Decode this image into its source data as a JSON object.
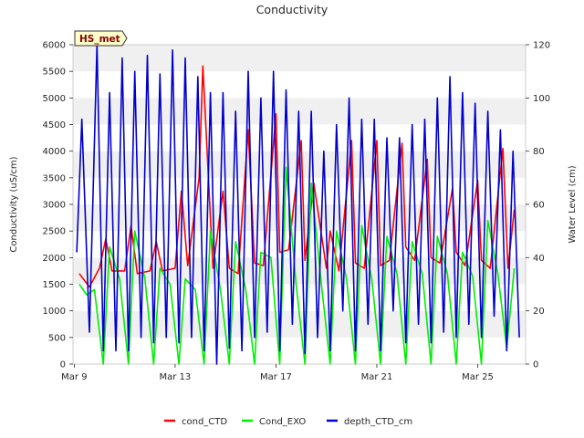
{
  "chart_data": {
    "type": "line",
    "title": "Conductivity",
    "badge": "HS_met",
    "ylabel": "Conductivity (uS/cm)",
    "y2label": "Water Level (cm)",
    "xlabel": "",
    "ylim": [
      0,
      6000
    ],
    "y2lim": [
      0,
      120
    ],
    "x_ticks": [
      {
        "label": "Mar 9",
        "day": 9
      },
      {
        "label": "Mar 13",
        "day": 13
      },
      {
        "label": "Mar 17",
        "day": 17
      },
      {
        "label": "Mar 21",
        "day": 21
      },
      {
        "label": "Mar 25",
        "day": 25
      }
    ],
    "y_ticks": [
      "0",
      "500",
      "1000",
      "1500",
      "2000",
      "2500",
      "3000",
      "3500",
      "4000",
      "4500",
      "5000",
      "5500",
      "6000"
    ],
    "y2_ticks": [
      "0",
      "20",
      "40",
      "60",
      "80",
      "100",
      "120"
    ],
    "x_range_days": [
      8.95,
      26.9
    ],
    "legend_position": "bottom-center",
    "grid": "horizontal bands",
    "series": [
      {
        "name": "cond_CTD",
        "axis": "left",
        "color": "#ff0000",
        "x_day": [
          9.2,
          9.6,
          10.0,
          10.25,
          10.5,
          11.0,
          11.25,
          11.5,
          12.0,
          12.25,
          12.5,
          13.0,
          13.25,
          13.5,
          13.95,
          14.1,
          14.5,
          14.9,
          15.15,
          15.5,
          15.9,
          16.15,
          16.5,
          17.0,
          17.15,
          17.5,
          18.0,
          18.15,
          18.5,
          19.0,
          19.15,
          19.5,
          20.0,
          20.15,
          20.5,
          21.0,
          21.15,
          21.5,
          22.0,
          22.15,
          22.5,
          23.0,
          23.15,
          23.5,
          24.0,
          24.15,
          24.5,
          25.0,
          25.15,
          25.5,
          26.0,
          26.2,
          26.45
        ],
        "values": [
          1700,
          1450,
          1800,
          2350,
          1750,
          1750,
          2600,
          1700,
          1750,
          2300,
          1750,
          1800,
          3250,
          1850,
          3500,
          5600,
          1800,
          3250,
          1800,
          1700,
          4400,
          1900,
          1850,
          4700,
          2100,
          2150,
          4200,
          1950,
          3400,
          1800,
          2500,
          1750,
          4200,
          1900,
          1800,
          4200,
          1850,
          1950,
          4150,
          2200,
          1950,
          3850,
          2000,
          1900,
          3300,
          2100,
          1850,
          3450,
          1950,
          1800,
          4050,
          1800,
          2900
        ]
      },
      {
        "name": "Cond_EXO",
        "axis": "left",
        "color": "#00ee00",
        "x_day": [
          9.2,
          9.5,
          9.8,
          10.15,
          10.4,
          10.8,
          11.15,
          11.4,
          11.8,
          12.15,
          12.4,
          12.8,
          13.15,
          13.4,
          13.8,
          14.15,
          14.4,
          14.8,
          15.15,
          15.4,
          15.8,
          16.15,
          16.4,
          16.8,
          17.15,
          17.4,
          17.8,
          18.15,
          18.4,
          18.8,
          19.15,
          19.4,
          19.8,
          20.15,
          20.4,
          20.8,
          21.15,
          21.4,
          21.8,
          22.15,
          22.4,
          22.8,
          23.15,
          23.4,
          23.8,
          24.15,
          24.4,
          24.8,
          25.15,
          25.4,
          25.8,
          26.15,
          26.45
        ],
        "values": [
          1500,
          1300,
          1400,
          0,
          2200,
          1600,
          0,
          2500,
          1600,
          0,
          1800,
          1500,
          0,
          1600,
          1400,
          0,
          2500,
          1400,
          0,
          2300,
          1400,
          0,
          2100,
          2000,
          0,
          3700,
          1500,
          0,
          3400,
          1500,
          0,
          2500,
          1600,
          0,
          2600,
          1600,
          0,
          2400,
          1700,
          0,
          2300,
          1700,
          0,
          2400,
          1700,
          0,
          2100,
          1650,
          0,
          2700,
          1700,
          300,
          1800
        ]
      },
      {
        "name": "depth_CTD_cm",
        "axis": "right",
        "color": "#0000cc",
        "x_day": [
          9.1,
          9.3,
          9.6,
          9.9,
          10.15,
          10.4,
          10.65,
          10.9,
          11.15,
          11.4,
          11.65,
          11.9,
          12.15,
          12.4,
          12.65,
          12.9,
          13.15,
          13.4,
          13.65,
          13.9,
          14.15,
          14.4,
          14.65,
          14.9,
          15.15,
          15.4,
          15.65,
          15.9,
          16.15,
          16.4,
          16.65,
          16.9,
          17.15,
          17.4,
          17.65,
          17.9,
          18.15,
          18.4,
          18.65,
          18.9,
          19.15,
          19.4,
          19.65,
          19.9,
          20.15,
          20.4,
          20.65,
          20.9,
          21.15,
          21.4,
          21.65,
          21.9,
          22.15,
          22.4,
          22.65,
          22.9,
          23.15,
          23.4,
          23.65,
          23.9,
          24.15,
          24.4,
          24.65,
          24.9,
          25.15,
          25.4,
          25.65,
          25.9,
          26.15,
          26.4,
          26.65
        ],
        "values": [
          42,
          92,
          12,
          120,
          5,
          102,
          5,
          115,
          5,
          110,
          10,
          116,
          8,
          109,
          10,
          118,
          8,
          115,
          10,
          108,
          5,
          102,
          0,
          102,
          6,
          95,
          5,
          110,
          10,
          100,
          12,
          110,
          5,
          103,
          15,
          95,
          4,
          95,
          10,
          80,
          5,
          90,
          20,
          100,
          5,
          92,
          15,
          92,
          5,
          85,
          20,
          85,
          8,
          90,
          15,
          92,
          8,
          100,
          12,
          108,
          10,
          102,
          15,
          98,
          10,
          95,
          18,
          88,
          5,
          80,
          10
        ]
      }
    ]
  }
}
